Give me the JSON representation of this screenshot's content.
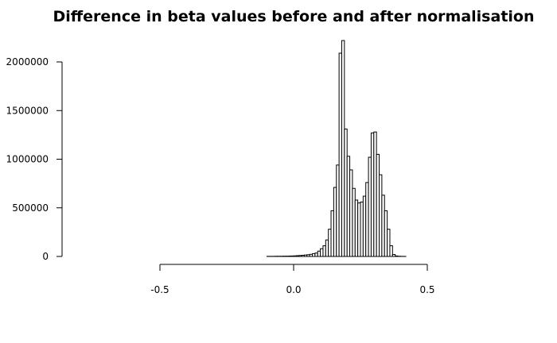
{
  "chart_data": {
    "type": "bar",
    "title": "Difference in beta values before and after normalisation",
    "xlabel": "",
    "ylabel": "",
    "xlim": [
      -0.7,
      0.5
    ],
    "ylim": [
      0,
      2000000
    ],
    "x_ticks": [
      -0.5,
      0.0,
      0.5
    ],
    "x_tick_labels": [
      "-0.5",
      "0.0",
      "0.5"
    ],
    "y_ticks": [
      0,
      500000,
      1000000,
      1500000,
      2000000
    ],
    "y_tick_labels": [
      "0",
      "500000",
      "1000000",
      "1500000",
      "2000000"
    ],
    "bin_width": 0.01,
    "bins_start": -0.7,
    "values": [
      0,
      0,
      0,
      0,
      0,
      0,
      0,
      0,
      0,
      0,
      0,
      0,
      0,
      0,
      0,
      0,
      0,
      0,
      0,
      0,
      0,
      0,
      0,
      0,
      0,
      0,
      0,
      0,
      0,
      0,
      0,
      0,
      0,
      0,
      0,
      0,
      0,
      0,
      0,
      0,
      0,
      0,
      0,
      0,
      0,
      0,
      0,
      0,
      0,
      0,
      0,
      0,
      0,
      0,
      0,
      0,
      0,
      0,
      0,
      0,
      1000,
      1000,
      1000,
      2000,
      2000,
      2000,
      3000,
      3000,
      4000,
      5000,
      6000,
      8000,
      10000,
      12000,
      15000,
      18000,
      22000,
      28000,
      35000,
      55000,
      80000,
      110000,
      170000,
      280000,
      470000,
      710000,
      940000,
      2090000,
      2220000,
      1310000,
      1030000,
      890000,
      700000,
      580000,
      550000,
      560000,
      620000,
      760000,
      1020000,
      1270000,
      1280000,
      1050000,
      840000,
      630000,
      470000,
      280000,
      110000,
      20000,
      5000,
      2000,
      1000,
      500,
      0,
      0,
      0,
      0,
      0,
      0,
      0,
      0,
      0,
      0
    ],
    "grid": false,
    "legend": "none"
  }
}
